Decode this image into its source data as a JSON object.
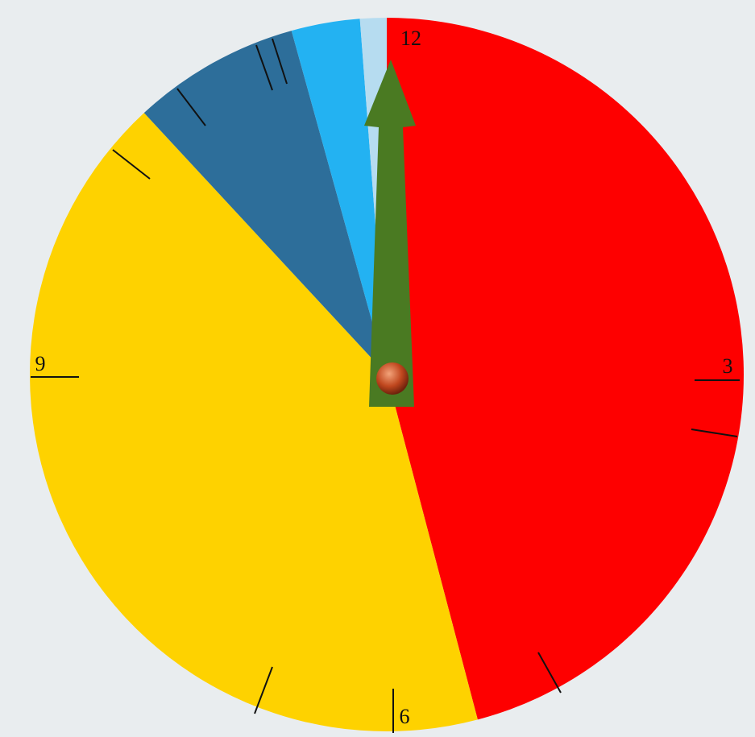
{
  "chart_data": {
    "type": "pie",
    "categories": [
      null,
      null,
      null,
      null,
      null
    ],
    "values": [
      45.9,
      42.2,
      7.6,
      3.1,
      1.2
    ],
    "colors": [
      "#fe0000",
      "#fed200",
      "#2d6e9a",
      "#23b2f2",
      "#b6dcf0"
    ],
    "clock_labels": [
      "12",
      "3",
      "6",
      "9"
    ]
  }
}
